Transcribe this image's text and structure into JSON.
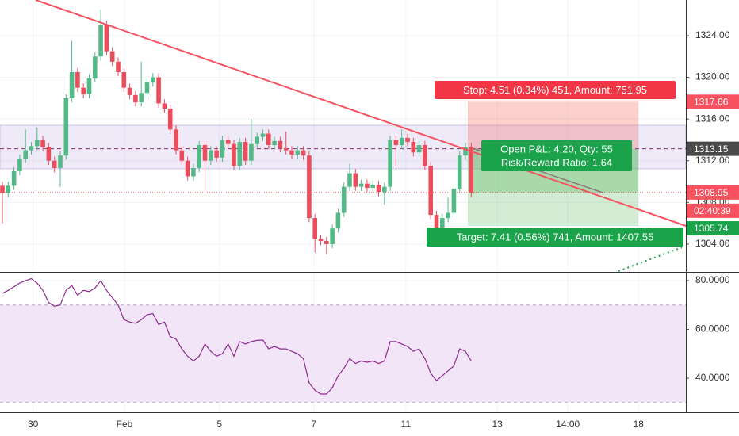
{
  "chart_data": [
    {
      "type": "candlestick",
      "x": [
        0,
        1,
        2,
        3,
        4,
        5,
        6,
        7,
        8,
        9,
        10,
        11,
        12,
        13,
        14,
        15,
        16,
        17,
        18,
        19,
        20,
        21,
        22,
        23,
        24,
        25,
        26,
        27,
        28,
        29,
        30,
        31,
        32,
        33,
        34,
        35,
        36,
        37,
        38,
        39,
        40,
        41,
        42,
        43,
        44,
        45,
        46,
        47,
        48,
        49,
        50,
        51,
        52,
        53,
        54,
        55,
        56,
        57,
        58,
        59,
        60,
        61,
        62,
        63,
        64,
        65,
        66,
        67,
        68,
        69,
        70,
        71,
        72,
        73,
        74,
        75,
        76,
        77,
        78,
        79,
        80,
        81
      ],
      "open": [
        1309.6,
        1308.9,
        1309.6,
        1311.0,
        1312.2,
        1313.0,
        1313.4,
        1314.0,
        1313.3,
        1312.0,
        1311.3,
        1312.5,
        1318.0,
        1320.5,
        1319.0,
        1318.4,
        1319.9,
        1322.0,
        1325.0,
        1322.5,
        1321.5,
        1320.5,
        1319.0,
        1318.3,
        1317.6,
        1318.5,
        1319.5,
        1320.0,
        1317.5,
        1317.0,
        1315.0,
        1313.0,
        1312.0,
        1310.5,
        1311.3,
        1313.5,
        1312.0,
        1313.0,
        1312.3,
        1314.0,
        1313.6,
        1311.5,
        1313.8,
        1312.0,
        1313.6,
        1314.3,
        1314.6,
        1313.5,
        1313.9,
        1313.2,
        1313.0,
        1312.6,
        1313.0,
        1312.5,
        1306.5,
        1304.5,
        1304.3,
        1304.0,
        1305.5,
        1307.0,
        1309.5,
        1310.8,
        1309.5,
        1309.8,
        1309.4,
        1309.7,
        1309.0,
        1309.5,
        1314.0,
        1313.5,
        1314.2,
        1313.8,
        1312.8,
        1313.5,
        1311.5,
        1306.8,
        1305.0,
        1306.5,
        1307.0,
        1309.3,
        1312.5,
        1313.3
      ],
      "high": [
        1310.0,
        1310.0,
        1311.4,
        1312.6,
        1315.0,
        1313.8,
        1315.2,
        1314.4,
        1313.7,
        1312.4,
        1312.9,
        1318.4,
        1323.5,
        1320.9,
        1319.4,
        1320.3,
        1322.4,
        1326.5,
        1325.4,
        1322.9,
        1321.9,
        1320.9,
        1319.4,
        1318.7,
        1321.5,
        1319.9,
        1320.4,
        1320.4,
        1317.9,
        1317.4,
        1315.4,
        1313.4,
        1312.4,
        1311.7,
        1313.9,
        1313.9,
        1313.4,
        1313.4,
        1314.4,
        1314.4,
        1314.0,
        1314.2,
        1314.2,
        1316.0,
        1314.7,
        1315.0,
        1315.0,
        1314.3,
        1314.3,
        1314.8,
        1313.4,
        1313.4,
        1313.4,
        1312.9,
        1306.9,
        1304.9,
        1304.7,
        1305.9,
        1307.4,
        1309.9,
        1311.7,
        1311.2,
        1310.2,
        1310.2,
        1310.1,
        1310.1,
        1309.9,
        1314.4,
        1314.4,
        1315.0,
        1314.6,
        1314.2,
        1313.9,
        1313.9,
        1311.9,
        1307.2,
        1306.9,
        1308.5,
        1309.7,
        1312.9,
        1313.7,
        1313.7
      ],
      "low": [
        1306.0,
        1308.5,
        1309.2,
        1310.6,
        1311.8,
        1312.6,
        1313.0,
        1312.9,
        1311.6,
        1310.9,
        1309.5,
        1312.1,
        1317.6,
        1318.6,
        1318.0,
        1318.0,
        1319.5,
        1321.6,
        1322.1,
        1321.1,
        1320.1,
        1318.6,
        1317.9,
        1317.2,
        1317.2,
        1318.1,
        1319.1,
        1317.1,
        1316.6,
        1314.6,
        1312.6,
        1311.6,
        1310.1,
        1310.1,
        1310.9,
        1309.0,
        1311.6,
        1311.9,
        1311.9,
        1313.2,
        1311.1,
        1311.1,
        1311.6,
        1311.6,
        1313.2,
        1313.9,
        1313.1,
        1313.1,
        1312.8,
        1312.6,
        1312.2,
        1312.2,
        1312.1,
        1306.1,
        1303.2,
        1303.9,
        1303.0,
        1303.6,
        1305.1,
        1306.6,
        1309.1,
        1309.1,
        1309.1,
        1309.0,
        1309.0,
        1308.6,
        1307.8,
        1309.1,
        1311.5,
        1313.1,
        1313.4,
        1312.4,
        1312.4,
        1311.1,
        1306.4,
        1304.6,
        1304.6,
        1306.1,
        1306.6,
        1308.9,
        1312.1,
        1308.5
      ],
      "close": [
        1308.9,
        1309.6,
        1311.0,
        1312.2,
        1313.0,
        1313.4,
        1314.0,
        1313.3,
        1312.0,
        1311.3,
        1312.5,
        1318.0,
        1320.5,
        1319.0,
        1318.4,
        1319.9,
        1322.0,
        1325.0,
        1322.5,
        1321.5,
        1320.5,
        1319.0,
        1318.3,
        1317.6,
        1318.5,
        1319.5,
        1320.0,
        1317.5,
        1317.0,
        1315.0,
        1313.0,
        1312.0,
        1310.5,
        1311.3,
        1313.5,
        1312.0,
        1313.0,
        1312.3,
        1314.0,
        1313.6,
        1311.5,
        1313.8,
        1312.0,
        1313.6,
        1314.3,
        1314.6,
        1313.5,
        1313.9,
        1313.2,
        1313.0,
        1312.6,
        1313.0,
        1312.5,
        1306.5,
        1304.5,
        1304.3,
        1304.0,
        1305.5,
        1307.0,
        1309.5,
        1310.8,
        1309.5,
        1309.8,
        1309.4,
        1309.7,
        1309.0,
        1309.5,
        1314.0,
        1313.5,
        1314.2,
        1313.8,
        1312.8,
        1313.5,
        1311.5,
        1306.8,
        1305.0,
        1306.5,
        1307.0,
        1309.3,
        1312.5,
        1313.3,
        1308.95
      ],
      "up_color": "#53b987",
      "down_color": "#eb4d5c",
      "xlim": [
        -0.41,
        118.08
      ],
      "ylim": [
        1301.41,
        1327.42
      ],
      "yticks": [
        {
          "value": 1304,
          "label": "1304.00"
        },
        {
          "value": 1308,
          "label": "1308.00"
        },
        {
          "value": 1312,
          "label": "1312.00"
        },
        {
          "value": 1316,
          "label": "1316.00"
        },
        {
          "value": 1320,
          "label": "1320.00"
        },
        {
          "value": 1324,
          "label": "1324.00"
        }
      ],
      "grid": true,
      "price_labels": {
        "stop": 1317.66,
        "entry": 1313.15,
        "last": 1308.95,
        "countdown": "02:40:39",
        "target": 1305.74
      },
      "position": {
        "stop_text": "Stop: 4.51 (0.34%) 451, Amount: 751.95",
        "pnl_text": "Open P&L: 4.20, Qty: 55",
        "ratio_text": "Risk/Reward Ratio: 1.64",
        "target_text": "Target: 7.41 (0.56%) 741, Amount: 1407.55"
      }
    },
    {
      "type": "line",
      "x": [
        0,
        1,
        2,
        3,
        4,
        5,
        6,
        7,
        8,
        9,
        10,
        11,
        12,
        13,
        14,
        15,
        16,
        17,
        18,
        19,
        20,
        21,
        22,
        23,
        24,
        25,
        26,
        27,
        28,
        29,
        30,
        31,
        32,
        33,
        34,
        35,
        36,
        37,
        38,
        39,
        40,
        41,
        42,
        43,
        44,
        45,
        46,
        47,
        48,
        49,
        50,
        51,
        52,
        53,
        54,
        55,
        56,
        57,
        58,
        59,
        60,
        61,
        62,
        63,
        64,
        65,
        66,
        67,
        68,
        69,
        70,
        71,
        72,
        73,
        74,
        75,
        76,
        77,
        78,
        79,
        80,
        81
      ],
      "values": [
        74.8,
        76,
        77.5,
        79,
        80,
        80.8,
        79,
        76,
        71,
        69.5,
        70,
        76,
        78,
        74,
        76,
        75.5,
        77,
        80,
        76,
        73,
        70,
        64,
        63,
        62.5,
        64,
        66,
        66.5,
        62,
        63,
        57,
        56,
        52,
        49,
        47,
        49,
        54,
        51,
        49,
        50,
        54,
        49,
        55,
        54,
        55,
        55.5,
        55.6,
        52,
        53,
        52,
        52,
        51,
        50,
        48,
        38,
        35,
        33.5,
        33.5,
        36,
        41,
        44,
        48,
        46,
        47,
        46.5,
        47,
        46,
        47,
        55,
        55,
        54,
        53,
        51,
        52,
        48,
        42,
        39,
        41,
        43,
        45,
        52,
        51,
        47
      ],
      "color": "#8e2a8e",
      "xlim": [
        -0.41,
        118.08
      ],
      "ylim": [
        26.02,
        82.93
      ],
      "yticks": [
        {
          "value": 40,
          "label": "40.0000"
        },
        {
          "value": 60,
          "label": "60.0000"
        },
        {
          "value": 80,
          "label": "80.0000"
        }
      ],
      "levels": [
        30,
        70
      ],
      "xticks": [
        {
          "value": 5.3,
          "label": "30"
        },
        {
          "value": 21.1,
          "label": "Feb"
        },
        {
          "value": 37.5,
          "label": "5"
        },
        {
          "value": 53.8,
          "label": "7"
        },
        {
          "value": 69.7,
          "label": "11"
        },
        {
          "value": 85.5,
          "label": "13"
        },
        {
          "value": 97.7,
          "label": "14:00"
        },
        {
          "value": 109.9,
          "label": "18"
        }
      ],
      "grid": true
    }
  ]
}
